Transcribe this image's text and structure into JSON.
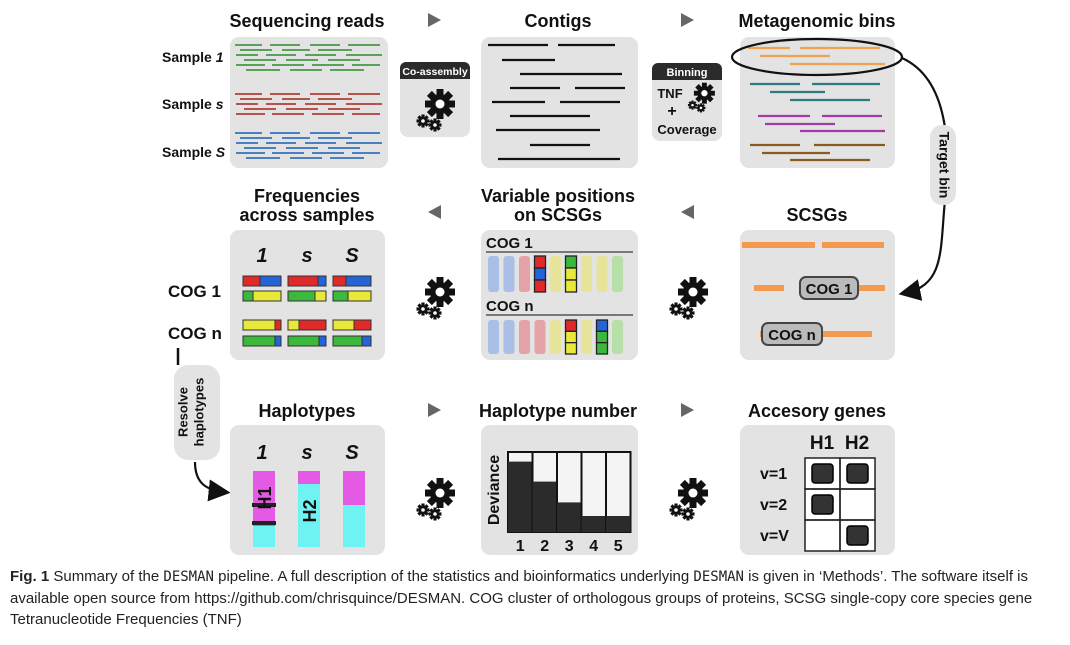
{
  "colors": {
    "panel": "#e3e3e3",
    "arrow": "#666666",
    "reads_sample_1": "#5aa15a",
    "reads_sample_s": "#b5524c",
    "reads_sample_S": "#4a7fc1",
    "bin_orange": "#f0a250",
    "bin_teal": "#2f7a80",
    "bin_purple": "#a23aa8",
    "bin_brown": "#8a5a1e",
    "scsg_orange": "#f39a4f",
    "allele_red": "#e02a2a",
    "allele_blue": "#2563d8",
    "allele_yellow": "#e8e83a",
    "allele_green": "#3cb83c",
    "haplo_magenta": "#e45ae4",
    "haplo_cyan": "#6ff2f2",
    "box_dark": "#333333",
    "bar_dark": "#2b2b2b"
  },
  "titles": {
    "sequencing_reads": "Sequencing reads",
    "contigs": "Contigs",
    "metagenomic_bins": "Metagenomic bins",
    "frequencies_line1": "Frequencies",
    "frequencies_line2": "across samples",
    "variable_line1": "Variable positions",
    "variable_line2": "on SCSGs",
    "scsgs": "SCSGs",
    "haplotypes": "Haplotypes",
    "haplotype_number": "Haplotype number",
    "accessory_genes": "Accesory genes"
  },
  "samples": {
    "prefix": "Sample",
    "ids": [
      "1",
      "s",
      "S"
    ]
  },
  "steps": {
    "coassembly": "Co-assembly",
    "binning": "Binning",
    "tnf": "TNF",
    "plus": "+",
    "coverage": "Coverage",
    "target_bin": "Target bin",
    "resolve_line1": "Resolve",
    "resolve_line2": "haplotypes"
  },
  "cogs": {
    "cog1": "COG 1",
    "cogn": "COG n"
  },
  "frequencies_cols": [
    "1",
    "s",
    "S"
  ],
  "haplotypes": {
    "cols": [
      "1",
      "s",
      "S"
    ],
    "h1": "H1",
    "h2": "H2",
    "magenta_fraction": [
      0.72,
      0.17,
      0.45
    ]
  },
  "haplotype_number": {
    "ylabel": "Deviance",
    "x": [
      "1",
      "2",
      "3",
      "4",
      "5"
    ],
    "deviance_fraction": [
      0.88,
      0.63,
      0.37,
      0.2,
      0.2
    ]
  },
  "accessory": {
    "cols": [
      "H1",
      "H2"
    ],
    "rows": [
      "v=1",
      "v=2",
      "v=V"
    ],
    "presence": [
      [
        true,
        true
      ],
      [
        true,
        false
      ],
      [
        false,
        true
      ]
    ]
  },
  "caption": {
    "fig_label": "Fig. 1",
    "part1": "Summary of the ",
    "code1": "DESMAN",
    "part2": " pipeline. A full description of the statistics and bioinformatics underlying ",
    "code2": "DESMAN",
    "part3": " is given in ‘Methods’. The software itself is available open source from https://github.com/chrisquince/DESMAN. COG cluster of orthologous groups of proteins, SCSG single-copy core species gene Tetranucleotide Frequencies (TNF)"
  }
}
